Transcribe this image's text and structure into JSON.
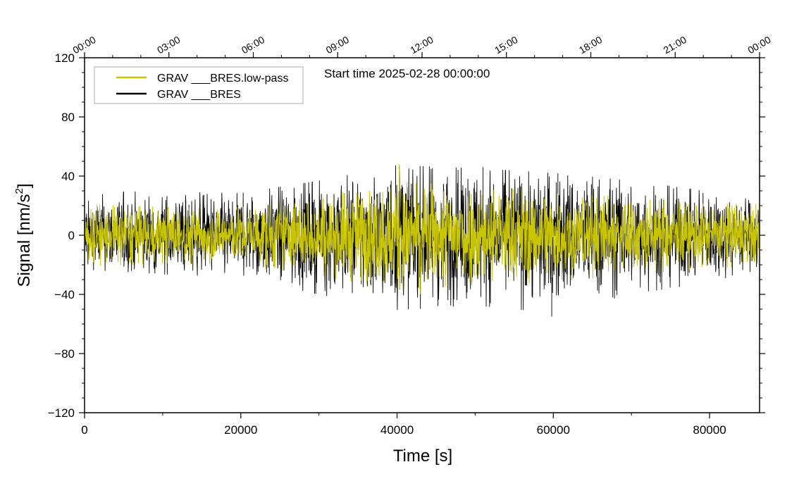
{
  "chart_data": {
    "type": "line",
    "title": "",
    "xlabel": "Time [s]",
    "ylabel": "Signal [nm/s",
    "ylabel_sup": "2",
    "ylabel_end": "]",
    "xlim": [
      0,
      86400
    ],
    "ylim": [
      -120,
      120
    ],
    "x_ticks": [
      0,
      20000,
      40000,
      60000,
      80000
    ],
    "x_tick_labels": [
      "0",
      "20000",
      "40000",
      "60000",
      "80000"
    ],
    "x_minor_step": 10000,
    "y_ticks": [
      -120,
      -80,
      -40,
      0,
      40,
      80,
      120
    ],
    "y_tick_labels": [
      "−120",
      "−80",
      "−40",
      "0",
      "40",
      "80",
      "120"
    ],
    "y_minor_step": 10,
    "top_axis_ticks": [
      0,
      10800,
      21600,
      32400,
      43200,
      54000,
      64800,
      75600,
      86400
    ],
    "top_axis_labels": [
      "00:00",
      "03:00",
      "06:00",
      "09:00",
      "12:00",
      "15:00",
      "18:00",
      "21:00",
      "00:00"
    ],
    "annotation": "Start time 2025-02-28 00:00:00",
    "legend_position": "top-left",
    "grid": false,
    "series": [
      {
        "name": "GRAV ___BRES.low-pass",
        "color": "#c8c400",
        "description": "noise band, typical amplitude approx ±15 nm/s2, peaks to about +48 near 40000 s",
        "envelope": {
          "x": [
            0,
            10000,
            20000,
            30000,
            40000,
            50000,
            60000,
            70000,
            80000,
            86400
          ],
          "upper": [
            20,
            18,
            18,
            25,
            34,
            32,
            28,
            24,
            20,
            20
          ],
          "lower": [
            -20,
            -18,
            -19,
            -26,
            -35,
            -33,
            -30,
            -25,
            -21,
            -20
          ]
        },
        "peaks": [
          {
            "x": 40300,
            "y": 48
          },
          {
            "x": 43000,
            "y": -40
          }
        ]
      },
      {
        "name": "GRAV ___BRES",
        "color": "#000000",
        "description": "raw noise, amplitude approx ±25 nm/s2, min near -55 at 60000 s",
        "envelope": {
          "x": [
            0,
            10000,
            20000,
            30000,
            40000,
            50000,
            60000,
            70000,
            80000,
            86400
          ],
          "upper": [
            28,
            28,
            27,
            35,
            45,
            43,
            40,
            35,
            28,
            25
          ],
          "lower": [
            -22,
            -25,
            -27,
            -38,
            -48,
            -45,
            -50,
            -38,
            -30,
            -22
          ]
        },
        "peaks": [
          {
            "x": 40300,
            "y": 47
          },
          {
            "x": 59800,
            "y": -55
          },
          {
            "x": 51000,
            "y": 46
          }
        ]
      }
    ]
  }
}
